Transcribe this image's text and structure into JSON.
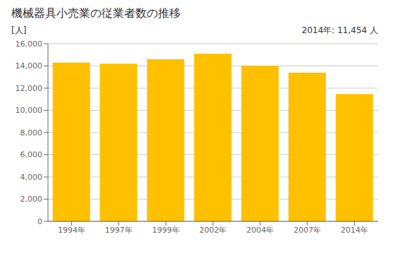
{
  "chart_data": {
    "type": "bar",
    "title": "機械器具小売業の従業者数の推移",
    "ylabel": "[人]",
    "annotation": "2014年: 11,454 人",
    "categories": [
      "1994年",
      "1997年",
      "1999年",
      "2002年",
      "2004年",
      "2007年",
      "2014年"
    ],
    "values": [
      14300,
      14200,
      14600,
      15100,
      14000,
      13400,
      11454
    ],
    "color": "#FFC000",
    "ylim": [
      0,
      16000
    ],
    "yticks": [
      0,
      {
        "value": 2000,
        "label": "2,000"
      },
      {
        "value": 4000,
        "label": "4,000"
      },
      {
        "value": 6000,
        "label": "6,000"
      },
      {
        "value": 8000,
        "label": "8,000"
      },
      {
        "value": 10000,
        "label": "10,000"
      },
      {
        "value": 12000,
        "label": "12,000"
      },
      {
        "value": 14000,
        "label": "14,000"
      },
      {
        "value": 16000,
        "label": "16,000"
      }
    ],
    "grid": true
  }
}
